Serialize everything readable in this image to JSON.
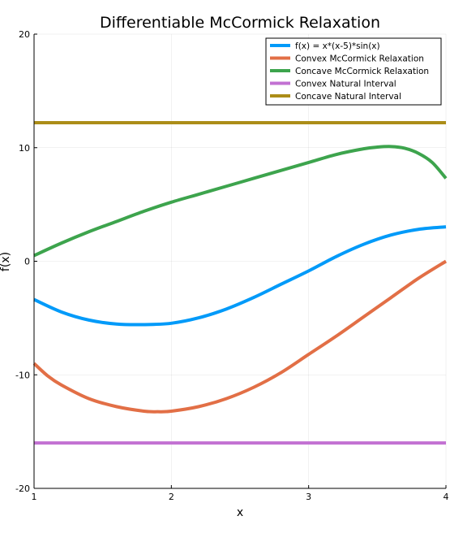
{
  "chart_data": {
    "type": "line",
    "title": "Differentiable McCormick Relaxation",
    "xlabel": "x",
    "ylabel": "f(x)",
    "xlim": [
      1,
      4
    ],
    "ylim": [
      -20,
      20
    ],
    "xticks": [
      1,
      2,
      3,
      4
    ],
    "yticks": [
      -20,
      -10,
      0,
      10,
      20
    ],
    "xtick_labels": [
      "1",
      "2",
      "3",
      "4"
    ],
    "ytick_labels": [
      "-20",
      "-10",
      "0",
      "10",
      "20"
    ],
    "grid": true,
    "legend_position": "top-right",
    "series": [
      {
        "name": "f(x) = x*(x-5)*sin(x)",
        "color": "#009af9",
        "x": [
          1.0,
          1.2,
          1.4,
          1.6,
          1.8,
          2.0,
          2.2,
          2.4,
          2.6,
          2.8,
          3.0,
          3.2,
          3.4,
          3.6,
          3.8,
          4.0
        ],
        "y": [
          -3.37,
          -4.47,
          -5.18,
          -5.53,
          -5.58,
          -5.46,
          -4.98,
          -4.21,
          -3.19,
          -2.02,
          -0.85,
          0.41,
          1.49,
          2.31,
          2.81,
          3.03
        ]
      },
      {
        "name": "Convex McCormick Relaxation",
        "color": "#e26f46",
        "x": [
          1.0,
          1.1,
          1.2,
          1.4,
          1.6,
          1.8,
          1.9,
          2.0,
          2.2,
          2.4,
          2.6,
          2.8,
          3.0,
          3.2,
          3.4,
          3.6,
          3.8,
          4.0
        ],
        "y": [
          -9.0,
          -10.1,
          -10.9,
          -12.1,
          -12.8,
          -13.2,
          -13.25,
          -13.2,
          -12.8,
          -12.1,
          -11.1,
          -9.8,
          -8.2,
          -6.6,
          -4.9,
          -3.2,
          -1.5,
          0.0
        ]
      },
      {
        "name": "Concave McCormick Relaxation",
        "color": "#3da44d",
        "x": [
          1.0,
          1.2,
          1.4,
          1.6,
          1.8,
          2.0,
          2.2,
          2.4,
          2.6,
          2.8,
          3.0,
          3.2,
          3.4,
          3.5,
          3.6,
          3.7,
          3.8,
          3.9,
          4.0
        ],
        "y": [
          0.5,
          1.6,
          2.6,
          3.5,
          4.4,
          5.2,
          5.9,
          6.6,
          7.3,
          8.0,
          8.7,
          9.4,
          9.9,
          10.05,
          10.1,
          9.95,
          9.5,
          8.7,
          7.3
        ]
      },
      {
        "name": "Convex Natural Interval",
        "color": "#c271d2",
        "x": [
          1.0,
          4.0
        ],
        "y": [
          -16.0,
          -16.0
        ]
      },
      {
        "name": "Concave Natural Interval",
        "color": "#ac8d18",
        "x": [
          1.0,
          4.0
        ],
        "y": [
          12.2,
          12.2
        ]
      }
    ]
  }
}
